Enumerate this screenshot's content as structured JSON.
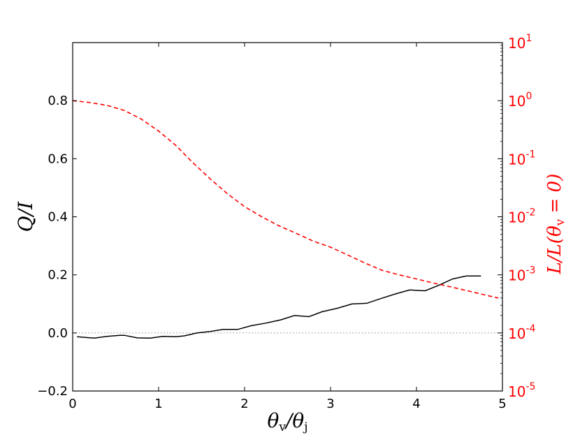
{
  "chart_data": {
    "type": "line",
    "x": [
      0.05,
      0.25,
      0.4,
      0.55,
      0.6,
      0.75,
      0.9,
      1.05,
      1.2,
      1.3,
      1.45,
      1.6,
      1.75,
      1.92,
      2.08,
      2.25,
      2.42,
      2.58,
      2.75,
      2.9,
      3.08,
      3.25,
      3.42,
      3.58,
      3.75,
      3.92,
      4.1,
      4.25,
      4.42,
      4.58,
      4.75
    ],
    "xlabel": "θv/θj",
    "xlim": [
      0,
      5
    ],
    "x_ticks": [
      "0",
      "1",
      "2",
      "3",
      "4",
      "5"
    ],
    "left_axis": {
      "label": "Q/I",
      "ylim": [
        -0.2,
        1.0
      ],
      "ticks": [
        -0.2,
        0.0,
        0.2,
        0.4,
        0.6,
        0.8
      ],
      "tick_labels": [
        "−0.2",
        "0.0",
        "0.2",
        "0.4",
        "0.6",
        "0.8"
      ]
    },
    "right_axis": {
      "label": "L/L(θv = 0)",
      "scale": "log",
      "ylim": [
        1e-05,
        10
      ],
      "tick_exponents": [
        -5,
        -4,
        -3,
        -2,
        -1,
        0,
        1
      ],
      "tick_base": "10",
      "color": "#ff0000"
    },
    "series": [
      {
        "axis": "left",
        "color": "#000000",
        "style": "solid",
        "values": [
          -0.013,
          -0.018,
          -0.012,
          -0.008,
          -0.008,
          -0.017,
          -0.018,
          -0.012,
          -0.013,
          -0.01,
          0.0,
          0.005,
          0.012,
          0.012,
          0.025,
          0.034,
          0.045,
          0.06,
          0.056,
          0.073,
          0.085,
          0.1,
          0.102,
          0.118,
          0.134,
          0.148,
          0.145,
          0.163,
          0.186,
          0.196,
          0.196
        ]
      },
      {
        "axis": "right",
        "color": "#ff0000",
        "style": "dashed",
        "x": [
          0.0,
          0.2,
          0.4,
          0.6,
          0.8,
          1.0,
          1.2,
          1.4,
          1.6,
          1.8,
          2.0,
          2.2,
          2.4,
          2.6,
          2.8,
          3.0,
          3.2,
          3.4,
          3.6,
          3.8,
          4.0,
          4.2,
          4.4,
          4.6,
          4.8,
          4.95
        ],
        "values": [
          1.0,
          0.93,
          0.83,
          0.68,
          0.48,
          0.3,
          0.17,
          0.085,
          0.045,
          0.025,
          0.015,
          0.01,
          0.007,
          0.0052,
          0.0038,
          0.003,
          0.0022,
          0.0016,
          0.0012,
          0.001,
          0.00085,
          0.00072,
          0.00062,
          0.00053,
          0.00045,
          0.0004
        ]
      }
    ],
    "reference_line": {
      "axis": "left",
      "y": 0.0,
      "color": "#999999",
      "style": "dotted"
    }
  }
}
